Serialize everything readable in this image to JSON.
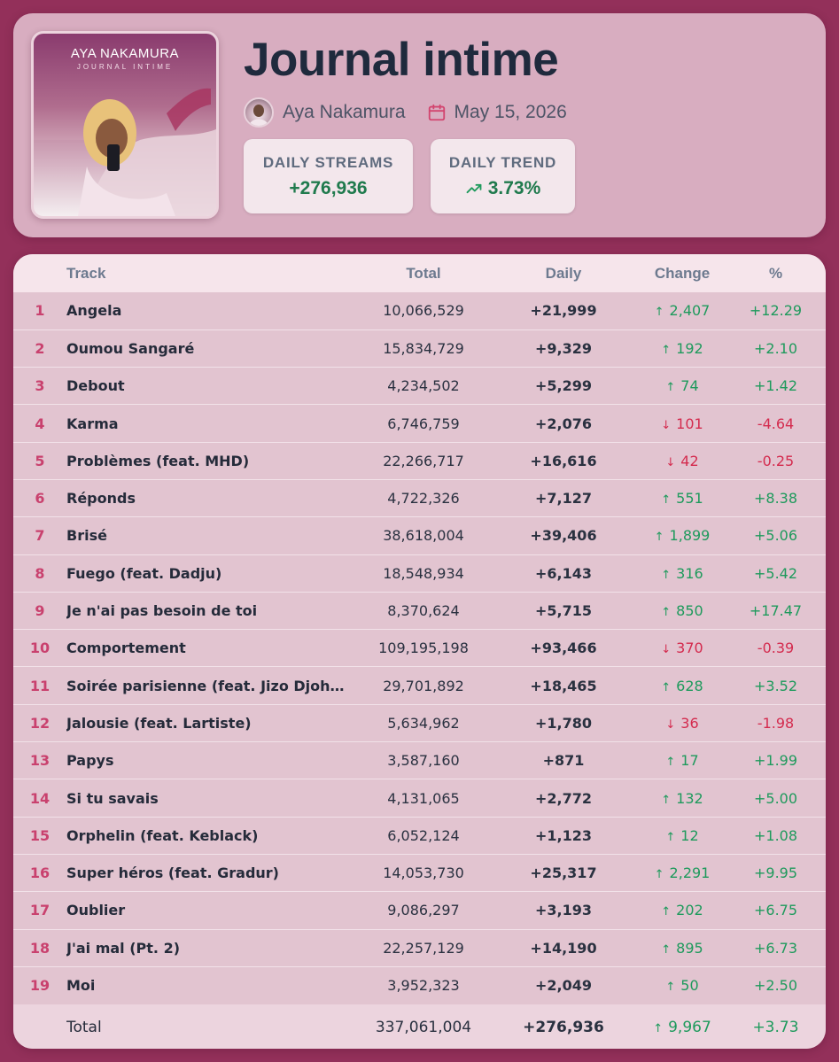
{
  "album": {
    "title": "Journal intime",
    "artist": "Aya Nakamura",
    "release_date": "May 15, 2026",
    "cover_artist_text": "AYA NAKAMURA",
    "cover_subtitle_text": "JOURNAL INTIME"
  },
  "stats": {
    "daily_streams_label": "DAILY STREAMS",
    "daily_streams_value": "+276,936",
    "daily_trend_label": "DAILY TREND",
    "daily_trend_value": "3.73%",
    "trend_icon": "trending-up-icon"
  },
  "colors": {
    "background": "#93305a",
    "header_card": "#d8adc0",
    "title": "#1f2a3d",
    "rank": "#c9416e",
    "positive": "#1e9a5c",
    "negative": "#d42b4e"
  },
  "table": {
    "headers": {
      "rank": "",
      "track": "Track",
      "total": "Total",
      "daily": "Daily",
      "change": "Change",
      "pct": "%"
    },
    "rows": [
      {
        "rank": "1",
        "track": "Angela",
        "total": "10,066,529",
        "daily": "+21,999",
        "dir": "up",
        "change": "2,407",
        "pct": "+12.29"
      },
      {
        "rank": "2",
        "track": "Oumou Sangaré",
        "total": "15,834,729",
        "daily": "+9,329",
        "dir": "up",
        "change": "192",
        "pct": "+2.10"
      },
      {
        "rank": "3",
        "track": "Debout",
        "total": "4,234,502",
        "daily": "+5,299",
        "dir": "up",
        "change": "74",
        "pct": "+1.42"
      },
      {
        "rank": "4",
        "track": "Karma",
        "total": "6,746,759",
        "daily": "+2,076",
        "dir": "down",
        "change": "101",
        "pct": "-4.64"
      },
      {
        "rank": "5",
        "track": "Problèmes (feat. MHD)",
        "total": "22,266,717",
        "daily": "+16,616",
        "dir": "down",
        "change": "42",
        "pct": "-0.25"
      },
      {
        "rank": "6",
        "track": "Réponds",
        "total": "4,722,326",
        "daily": "+7,127",
        "dir": "up",
        "change": "551",
        "pct": "+8.38"
      },
      {
        "rank": "7",
        "track": "Brisé",
        "total": "38,618,004",
        "daily": "+39,406",
        "dir": "up",
        "change": "1,899",
        "pct": "+5.06"
      },
      {
        "rank": "8",
        "track": "Fuego (feat. Dadju)",
        "total": "18,548,934",
        "daily": "+6,143",
        "dir": "up",
        "change": "316",
        "pct": "+5.42"
      },
      {
        "rank": "9",
        "track": "Je n'ai pas besoin de toi",
        "total": "8,370,624",
        "daily": "+5,715",
        "dir": "up",
        "change": "850",
        "pct": "+17.47"
      },
      {
        "rank": "10",
        "track": "Comportement",
        "total": "109,195,198",
        "daily": "+93,466",
        "dir": "down",
        "change": "370",
        "pct": "-0.39"
      },
      {
        "rank": "11",
        "track": "Soirée parisienne (feat. Jizo Djoh…",
        "total": "29,701,892",
        "daily": "+18,465",
        "dir": "up",
        "change": "628",
        "pct": "+3.52"
      },
      {
        "rank": "12",
        "track": "Jalousie (feat. Lartiste)",
        "total": "5,634,962",
        "daily": "+1,780",
        "dir": "down",
        "change": "36",
        "pct": "-1.98"
      },
      {
        "rank": "13",
        "track": "Papys",
        "total": "3,587,160",
        "daily": "+871",
        "dir": "up",
        "change": "17",
        "pct": "+1.99"
      },
      {
        "rank": "14",
        "track": "Si tu savais",
        "total": "4,131,065",
        "daily": "+2,772",
        "dir": "up",
        "change": "132",
        "pct": "+5.00"
      },
      {
        "rank": "15",
        "track": "Orphelin (feat. Keblack)",
        "total": "6,052,124",
        "daily": "+1,123",
        "dir": "up",
        "change": "12",
        "pct": "+1.08"
      },
      {
        "rank": "16",
        "track": "Super héros (feat. Gradur)",
        "total": "14,053,730",
        "daily": "+25,317",
        "dir": "up",
        "change": "2,291",
        "pct": "+9.95"
      },
      {
        "rank": "17",
        "track": "Oublier",
        "total": "9,086,297",
        "daily": "+3,193",
        "dir": "up",
        "change": "202",
        "pct": "+6.75"
      },
      {
        "rank": "18",
        "track": "J'ai mal (Pt. 2)",
        "total": "22,257,129",
        "daily": "+14,190",
        "dir": "up",
        "change": "895",
        "pct": "+6.73"
      },
      {
        "rank": "19",
        "track": "Moi",
        "total": "3,952,323",
        "daily": "+2,049",
        "dir": "up",
        "change": "50",
        "pct": "+2.50"
      }
    ],
    "footer": {
      "label": "Total",
      "total": "337,061,004",
      "daily": "+276,936",
      "dir": "up",
      "change": "9,967",
      "pct": "+3.73"
    }
  }
}
